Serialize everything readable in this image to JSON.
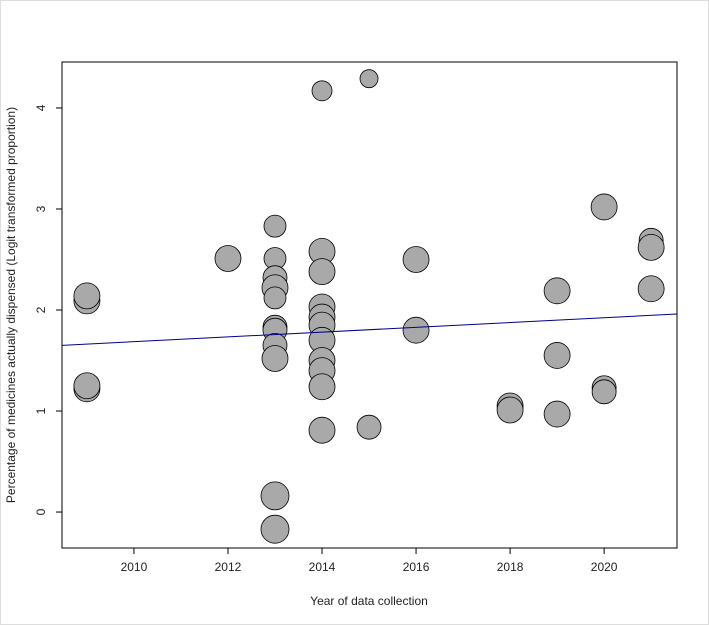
{
  "chart_data": {
    "type": "bubble",
    "xlabel": "Year of data collection",
    "ylabel": "Percentage of medicines actually dispensed (Logit transformed proportion)",
    "x": [
      2009,
      2009,
      2009,
      2009,
      2012,
      2013,
      2013,
      2013,
      2013,
      2013,
      2013,
      2013,
      2013,
      2013,
      2013,
      2013,
      2014,
      2014,
      2014,
      2014,
      2014,
      2014,
      2014,
      2014,
      2014,
      2014,
      2014,
      2015,
      2015,
      2016,
      2016,
      2018,
      2018,
      2019,
      2019,
      2019,
      2020,
      2020,
      2020,
      2021,
      2021,
      2021
    ],
    "values": [
      2.09,
      2.14,
      1.22,
      1.25,
      2.51,
      2.83,
      2.51,
      2.32,
      2.22,
      2.12,
      1.83,
      1.8,
      1.65,
      1.52,
      0.16,
      -0.17,
      4.17,
      2.58,
      2.38,
      2.03,
      1.93,
      1.85,
      1.7,
      1.5,
      1.4,
      1.24,
      0.81,
      4.29,
      0.84,
      2.5,
      1.8,
      1.05,
      1.01,
      2.19,
      1.55,
      0.97,
      3.02,
      1.23,
      1.19,
      2.69,
      2.62,
      2.21
    ],
    "sizes": [
      13,
      13,
      13,
      13,
      13,
      11,
      11,
      12,
      13,
      11,
      12,
      12,
      12,
      13,
      14,
      14,
      10,
      13,
      13,
      13,
      13,
      13,
      13,
      13,
      13,
      13,
      13,
      9,
      12,
      13,
      13,
      13,
      13,
      13,
      13,
      13,
      13,
      12,
      12,
      12,
      13,
      13
    ],
    "color": "#a9a9a9",
    "trend_line": {
      "x": [
        2008.47,
        2021.55
      ],
      "values": [
        1.65,
        1.96
      ],
      "color": "#00008b"
    },
    "xlim": [
      2008.47,
      2021.55
    ],
    "ylim": [
      -0.356,
      4.455
    ],
    "xticks": [
      2010,
      2012,
      2014,
      2016,
      2018,
      2020
    ],
    "yticks": [
      0,
      1,
      2,
      3,
      4
    ]
  }
}
